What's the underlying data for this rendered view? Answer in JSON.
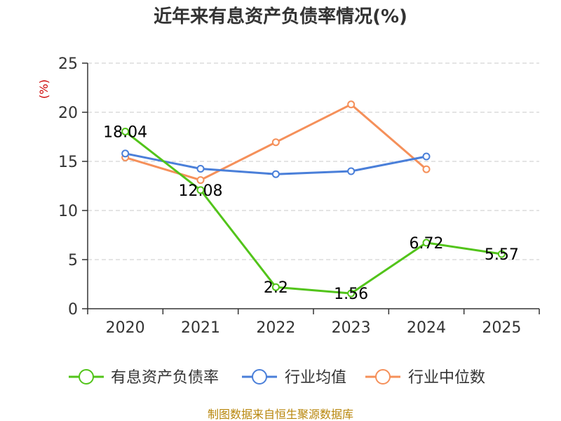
{
  "chart_data": {
    "type": "line",
    "title": "近年来有息资产负债率情况(%)",
    "ylabel": "(%)",
    "xlabel": "",
    "categories": [
      "2020",
      "2021",
      "2022",
      "2023",
      "2024",
      "2025"
    ],
    "ylim": [
      0,
      25
    ],
    "yticks": [
      0,
      5,
      10,
      15,
      20,
      25
    ],
    "grid": true,
    "legend_position": "bottom",
    "series": [
      {
        "name": "有息资产负债率",
        "color": "#52c41a",
        "values": [
          18.04,
          12.08,
          2.2,
          1.56,
          6.72,
          5.57
        ],
        "labels": [
          "18.04",
          "12.08",
          "2.2",
          "1.56",
          "6.72",
          "5.57"
        ]
      },
      {
        "name": "行业均值",
        "color": "#4a7fd9",
        "values": [
          15.8,
          14.25,
          13.7,
          14.0,
          15.5,
          null
        ]
      },
      {
        "name": "行业中位数",
        "color": "#f5905a",
        "values": [
          15.4,
          13.1,
          16.95,
          20.8,
          14.2,
          null
        ]
      }
    ],
    "source": "制图数据来自恒生聚源数据库"
  }
}
